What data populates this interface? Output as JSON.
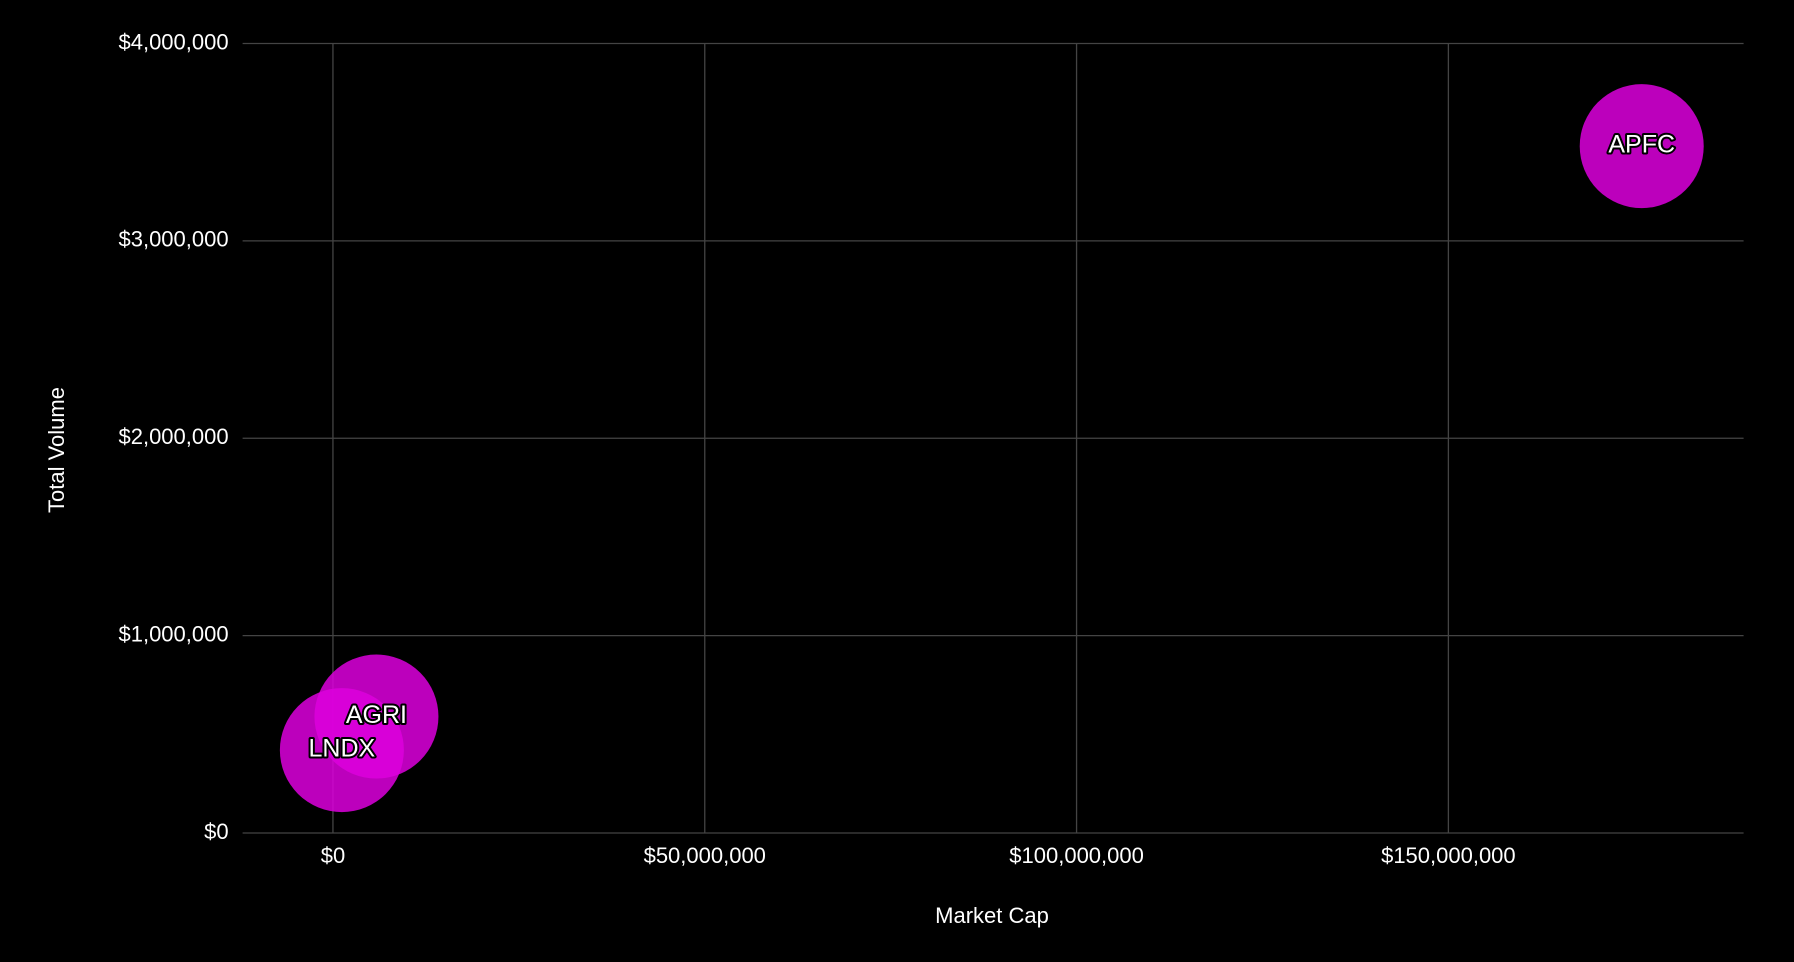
{
  "chart_data": {
    "type": "bubble",
    "x_label": "Market Cap",
    "y_label": "Total Volume",
    "labels": [
      "APFC",
      "AGRI",
      "LNDX"
    ],
    "x": [
      176000000,
      5850000,
      1200000
    ],
    "values": [
      3480000,
      590000,
      420000
    ],
    "color": "#dd00dd",
    "xlim": [
      -12150000,
      189700000
    ],
    "ylim": [
      0,
      4000000
    ],
    "xticks": [
      {
        "value": 0,
        "label": "$0"
      },
      {
        "value": 50000000,
        "label": "$50,000,000"
      },
      {
        "value": 100000000,
        "label": "$100,000,000"
      },
      {
        "value": 150000000,
        "label": "$150,000,000"
      }
    ],
    "yticks": [
      {
        "value": 0,
        "label": "$0"
      },
      {
        "value": 1000000,
        "label": "$1,000,000"
      },
      {
        "value": 2000000,
        "label": "$2,000,000"
      },
      {
        "value": 3000000,
        "label": "$3,000,000"
      },
      {
        "value": 4000000,
        "label": "$4,000,000"
      }
    ],
    "grid": true
  }
}
